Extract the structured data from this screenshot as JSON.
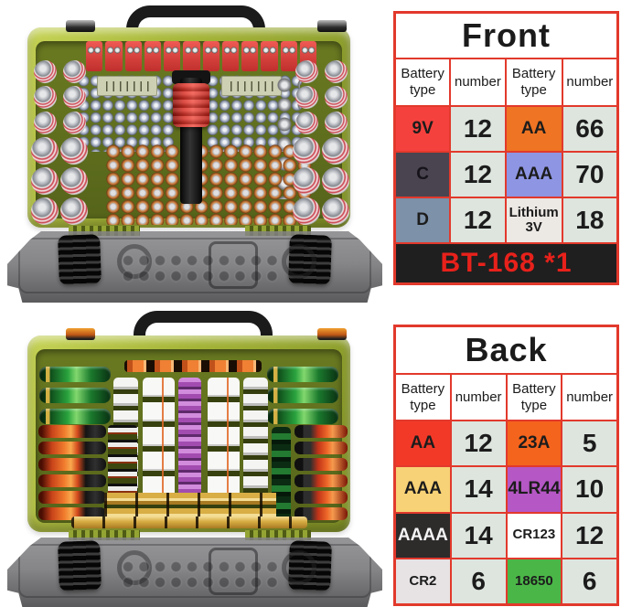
{
  "palette": {
    "table_border": "#e2392c",
    "number_cell_bg": "#dde5de",
    "case_green": "#a4b437",
    "lid_gray": "#7c7c7f"
  },
  "front_table": {
    "title": "Front",
    "headers": [
      "Battery type",
      "number",
      "Battery type",
      "number"
    ],
    "rows": [
      [
        {
          "label": "9V",
          "bg": "#f5413d",
          "fg": "#1c1c1c"
        },
        {
          "label": "12",
          "bg": "#dde5de",
          "fg": "#1c1c1c"
        },
        {
          "label": "AA",
          "bg": "#ef7423",
          "fg": "#1c1c1c"
        },
        {
          "label": "66",
          "bg": "#dde5de",
          "fg": "#1c1c1c"
        }
      ],
      [
        {
          "label": "C",
          "bg": "#4a4450",
          "fg": "#16131a"
        },
        {
          "label": "12",
          "bg": "#dde5de",
          "fg": "#1c1c1c"
        },
        {
          "label": "AAA",
          "bg": "#8e95e3",
          "fg": "#1c1c1c"
        },
        {
          "label": "70",
          "bg": "#dde5de",
          "fg": "#1c1c1c"
        }
      ],
      [
        {
          "label": "D",
          "bg": "#7d91a9",
          "fg": "#1c1c1c"
        },
        {
          "label": "12",
          "bg": "#dde5de",
          "fg": "#1c1c1c"
        },
        {
          "label": "Lithium 3V",
          "bg": "#ece8e4",
          "fg": "#1c1c1c"
        },
        {
          "label": "18",
          "bg": "#dde5de",
          "fg": "#1c1c1c"
        }
      ]
    ],
    "footer": {
      "label": "BT-168 *1",
      "bg": "#1f1f1f",
      "fg": "#e8211b"
    }
  },
  "back_table": {
    "title": "Back",
    "headers": [
      "Battery type",
      "number",
      "Battery type",
      "number"
    ],
    "rows": [
      [
        {
          "label": "AA",
          "bg": "#f23928",
          "fg": "#1c1c1c"
        },
        {
          "label": "12",
          "bg": "#dde5de",
          "fg": "#1c1c1c"
        },
        {
          "label": "23A",
          "bg": "#f4641d",
          "fg": "#1c1c1c"
        },
        {
          "label": "5",
          "bg": "#dde5de",
          "fg": "#1c1c1c"
        }
      ],
      [
        {
          "label": "AAA",
          "bg": "#f8d276",
          "fg": "#1c1c1c"
        },
        {
          "label": "14",
          "bg": "#dde5de",
          "fg": "#1c1c1c"
        },
        {
          "label": "4LR44",
          "bg": "#b557c5",
          "fg": "#1c1c1c"
        },
        {
          "label": "10",
          "bg": "#dde5de",
          "fg": "#1c1c1c"
        }
      ],
      [
        {
          "label": "AAAA",
          "bg": "#2e2b2b",
          "fg": "#f4f4f4"
        },
        {
          "label": "14",
          "bg": "#dde5de",
          "fg": "#1c1c1c"
        },
        {
          "label": "CR123",
          "bg": "#ffffff",
          "fg": "#1c1c1c"
        },
        {
          "label": "12",
          "bg": "#dde5de",
          "fg": "#1c1c1c"
        }
      ],
      [
        {
          "label": "CR2",
          "bg": "#e7e3e4",
          "fg": "#1c1c1c"
        },
        {
          "label": "6",
          "bg": "#dde5de",
          "fg": "#1c1c1c"
        },
        {
          "label": "18650",
          "bg": "#4bb648",
          "fg": "#1c1c1c"
        },
        {
          "label": "6",
          "bg": "#dde5de",
          "fg": "#1c1c1c"
        }
      ]
    ]
  }
}
